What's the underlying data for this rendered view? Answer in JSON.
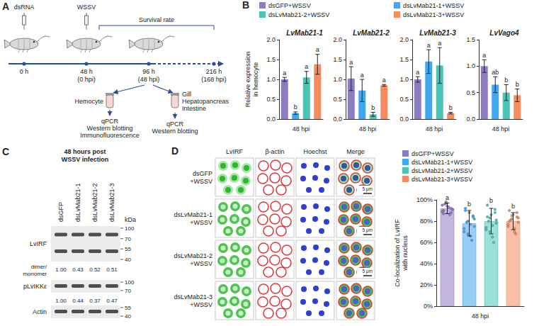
{
  "panels": {
    "A": {
      "letter": "A",
      "injections": [
        "dsRNA",
        "WSSV"
      ],
      "survival": "Survival rate",
      "timepoints": [
        {
          "time": "0 h"
        },
        {
          "time": "48 h",
          "hpi": "(0 hpi)"
        },
        {
          "time": "96 h",
          "hpi": "(48 hpi)"
        },
        {
          "time": "216 h",
          "hpi": "(168 hpi)"
        }
      ],
      "samples": [
        {
          "tissues": [
            "Hemocyte"
          ],
          "methods": [
            "qPCR",
            "Western blotting",
            "Immunofluorescence"
          ]
        },
        {
          "tissues": [
            "Gill",
            "Hepatopancreas",
            "Intestine"
          ],
          "methods": [
            "qPCR",
            "Western blotting"
          ]
        }
      ]
    },
    "B": {
      "letter": "B"
    },
    "C": {
      "letter": "C",
      "title": "48 hours post WSSV infection",
      "lanes": [
        "dsGFP",
        "dsLvMab21-1",
        "dsLvMab21-2",
        "dsLvMab21-3"
      ],
      "unit": "kDa",
      "rows": [
        {
          "label": "LvIRF",
          "markers": [
            100,
            70,
            55,
            40
          ],
          "quant_label": "dimer/ monomer",
          "quant": [
            "1.00",
            "0.43",
            "0.52",
            "0.51"
          ]
        },
        {
          "label": "pLvIKKε",
          "markers": [
            100,
            70
          ],
          "quant": [
            "1.00",
            "0.44",
            "0.37",
            "0.47"
          ]
        },
        {
          "label": "Actin",
          "markers": [
            55,
            40
          ]
        }
      ]
    },
    "D": {
      "letter": "D",
      "channels": [
        "LvIRF",
        "β-actin",
        "Hoechst",
        "Merge"
      ],
      "rows": [
        {
          "label": "dsGFP+WSSV",
          "scale_bar": "5 μm"
        },
        {
          "label": "dsLvMab21-1+WSSV",
          "scale_bar": "5 μm"
        },
        {
          "label": "dsLvMab21-2+WSSV",
          "scale_bar": "5 μm"
        },
        {
          "label": "dsLvMab21-3+WSSV"
        }
      ]
    }
  },
  "chart_data": [
    {
      "type": "bar",
      "title": "LvMab21-1",
      "ylabel": "Relative expression in hemocyte",
      "categories": [
        "48 hpi"
      ],
      "ylim": [
        0,
        2
      ],
      "yticks": [
        {
          "value": 0,
          "label": "0.0"
        },
        0.5,
        {
          "value": 1,
          "label": "1.0"
        },
        1.5,
        {
          "value": 2,
          "label": "2.0"
        }
      ],
      "grid": false,
      "legend": "top",
      "series": [
        {
          "name": "dsGFP+WSSV",
          "color": "#8e7cc3",
          "values": [
            1.0
          ],
          "errors": [
            0.05
          ],
          "letters": [
            "a"
          ]
        },
        {
          "name": "dsLvMab21-1+WSSV",
          "color": "#3ea8f0",
          "values": [
            0.15
          ],
          "errors": [
            0.03
          ],
          "letters": [
            "b"
          ]
        },
        {
          "name": "dsLvMab21-2+WSSV",
          "color": "#4cc3b5",
          "values": [
            1.05
          ],
          "errors": [
            0.15
          ],
          "letters": [
            "a"
          ]
        },
        {
          "name": "dsLvMab21-3+WSSV",
          "color": "#f58b5e",
          "values": [
            1.38
          ],
          "errors": [
            0.25
          ],
          "letters": [
            "a"
          ]
        }
      ]
    },
    {
      "type": "bar",
      "title": "LvMab21-2",
      "categories": [
        "48 hpi"
      ],
      "ylim": [
        0,
        2
      ],
      "yticks": [
        {
          "value": 0,
          "label": "0.0"
        },
        0.5,
        {
          "value": 1,
          "label": "1.0"
        },
        1.5,
        {
          "value": 2,
          "label": "2.0"
        }
      ],
      "grid": false,
      "series": [
        {
          "name": "dsGFP+WSSV",
          "color": "#8e7cc3",
          "values": [
            1.02
          ],
          "errors": [
            0.3
          ],
          "letters": [
            "a"
          ]
        },
        {
          "name": "dsLvMab21-1+WSSV",
          "color": "#3ea8f0",
          "values": [
            0.72
          ],
          "errors": [
            0.28
          ],
          "letters": [
            "a"
          ]
        },
        {
          "name": "dsLvMab21-2+WSSV",
          "color": "#4cc3b5",
          "values": [
            0.12
          ],
          "errors": [
            0.05
          ],
          "letters": [
            "b"
          ]
        },
        {
          "name": "dsLvMab21-3+WSSV",
          "color": "#f58b5e",
          "values": [
            0.85
          ],
          "errors": [
            0.02
          ],
          "letters": [
            "a"
          ]
        }
      ]
    },
    {
      "type": "bar",
      "title": "LvMab21-3",
      "categories": [
        "48 hpi"
      ],
      "ylim": [
        0,
        2
      ],
      "yticks": [
        {
          "value": 0,
          "label": "0.0"
        },
        0.5,
        {
          "value": 1,
          "label": "1.0"
        },
        1.5,
        {
          "value": 2,
          "label": "2.0"
        }
      ],
      "grid": false,
      "series": [
        {
          "name": "dsGFP+WSSV",
          "color": "#8e7cc3",
          "values": [
            1.0
          ],
          "errors": [
            0.07
          ],
          "letters": [
            "a"
          ]
        },
        {
          "name": "dsLvMab21-1+WSSV",
          "color": "#3ea8f0",
          "values": [
            1.45
          ],
          "errors": [
            0.3
          ],
          "letters": [
            "a"
          ]
        },
        {
          "name": "dsLvMab21-2+WSSV",
          "color": "#4cc3b5",
          "values": [
            1.35
          ],
          "errors": [
            0.45
          ],
          "letters": [
            "a"
          ]
        },
        {
          "name": "dsLvMab21-3+WSSV",
          "color": "#f58b5e",
          "values": [
            0.15
          ],
          "errors": [
            0.02
          ],
          "letters": [
            "b"
          ]
        }
      ]
    },
    {
      "type": "bar",
      "title": "LvVago4",
      "categories": [
        "48 hpi"
      ],
      "ylim": [
        0,
        1.5
      ],
      "yticks": [
        {
          "value": 0,
          "label": "0.0"
        },
        0.5,
        {
          "value": 1,
          "label": "1.0"
        },
        1.5
      ],
      "grid": false,
      "series": [
        {
          "name": "dsGFP+WSSV",
          "color": "#8e7cc3",
          "values": [
            1.0
          ],
          "errors": [
            0.12
          ],
          "letters": [
            "a"
          ]
        },
        {
          "name": "dsLvMab21-1+WSSV",
          "color": "#3ea8f0",
          "values": [
            0.65
          ],
          "errors": [
            0.15
          ],
          "letters": [
            "ab"
          ]
        },
        {
          "name": "dsLvMab21-2+WSSV",
          "color": "#4cc3b5",
          "values": [
            0.5
          ],
          "errors": [
            0.15
          ],
          "letters": [
            "b"
          ]
        },
        {
          "name": "dsLvMab21-3+WSSV",
          "color": "#f58b5e",
          "values": [
            0.45
          ],
          "errors": [
            0.12
          ],
          "letters": [
            "b"
          ]
        }
      ]
    },
    {
      "type": "bar",
      "ylabel": "Co-localization of LvIRF with nucleus",
      "categories": [
        "48 hpi"
      ],
      "ylim": [
        0,
        100
      ],
      "yticks": [
        {
          "value": 0,
          "label": "0%"
        },
        {
          "value": 20,
          "label": "20%"
        },
        {
          "value": 40,
          "label": "40%"
        },
        {
          "value": 60,
          "label": "60%"
        },
        {
          "value": 80,
          "label": "80%"
        },
        {
          "value": 100,
          "label": "100%"
        }
      ],
      "grid": false,
      "legend": "top",
      "series": [
        {
          "name": "dsGFP+WSSV",
          "color": "#8e7cc3",
          "values": [
            92
          ],
          "errors": [
            5
          ],
          "letters": [
            "a"
          ],
          "points": [
            95,
            88,
            93,
            97,
            90,
            91,
            86,
            94,
            96,
            89,
            92,
            93,
            98,
            87,
            91
          ]
        },
        {
          "name": "dsLvMab21-1+WSSV",
          "color": "#3ea8f0",
          "values": [
            78
          ],
          "errors": [
            12
          ],
          "letters": [
            "b"
          ],
          "points": [
            70,
            85,
            66,
            80,
            92,
            75,
            62,
            88,
            79,
            73,
            84,
            77,
            68,
            90,
            82
          ]
        },
        {
          "name": "dsLvMab21-2+WSSV",
          "color": "#4cc3b5",
          "values": [
            80
          ],
          "errors": [
            12
          ],
          "letters": [
            "b"
          ],
          "points": [
            72,
            88,
            65,
            83,
            95,
            78,
            60,
            86,
            80,
            74,
            91,
            76,
            70,
            84,
            81
          ]
        },
        {
          "name": "dsLvMab21-3+WSSV",
          "color": "#f58b5e",
          "values": [
            80
          ],
          "errors": [
            8
          ],
          "letters": [
            "b"
          ],
          "points": [
            75,
            84,
            70,
            82,
            90,
            79,
            68,
            86,
            81,
            77,
            88,
            73,
            85,
            80,
            83
          ]
        }
      ]
    }
  ]
}
